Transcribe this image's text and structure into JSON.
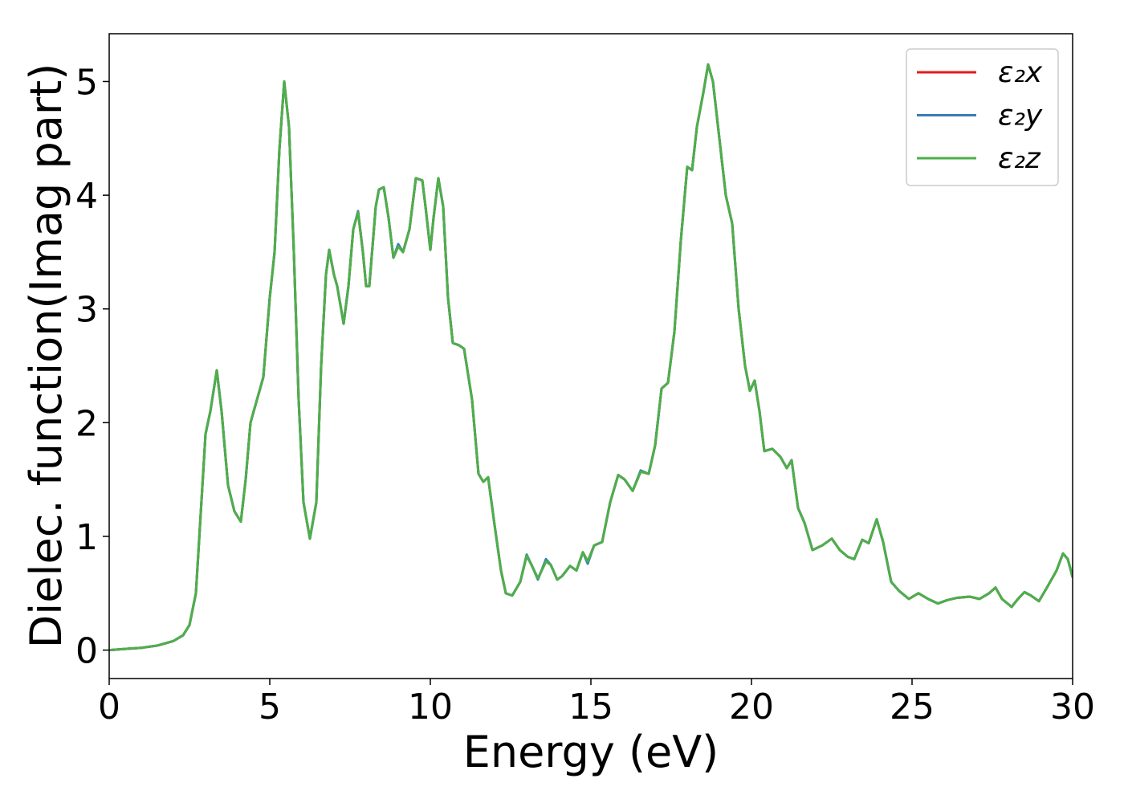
{
  "chart_data": {
    "type": "line",
    "xlabel": "Energy (eV)",
    "ylabel": "Dielec. function(Imag part)",
    "xlim": [
      0,
      30
    ],
    "ylim": [
      -0.25,
      5.42
    ],
    "xticks": [
      0,
      5,
      10,
      15,
      20,
      25,
      30
    ],
    "yticks": [
      0,
      1,
      2,
      3,
      4,
      5
    ],
    "grid": false,
    "legend": "upper right",
    "x": [
      0,
      0.5,
      1.0,
      1.5,
      2.0,
      2.3,
      2.5,
      2.7,
      2.85,
      3.0,
      3.15,
      3.35,
      3.5,
      3.7,
      3.9,
      4.1,
      4.25,
      4.4,
      4.6,
      4.8,
      5.0,
      5.15,
      5.3,
      5.45,
      5.6,
      5.75,
      5.9,
      6.05,
      6.25,
      6.45,
      6.6,
      6.75,
      6.85,
      7.0,
      7.1,
      7.3,
      7.45,
      7.6,
      7.75,
      7.9,
      8.0,
      8.1,
      8.3,
      8.4,
      8.55,
      8.7,
      8.85,
      9.0,
      9.15,
      9.35,
      9.55,
      9.75,
      9.85,
      10.0,
      10.1,
      10.25,
      10.4,
      10.55,
      10.7,
      10.9,
      11.05,
      11.3,
      11.5,
      11.65,
      11.8,
      12.0,
      12.2,
      12.35,
      12.55,
      12.8,
      13.0,
      13.15,
      13.35,
      13.6,
      13.75,
      13.95,
      14.1,
      14.35,
      14.55,
      14.75,
      14.9,
      15.1,
      15.35,
      15.6,
      15.85,
      16.05,
      16.3,
      16.55,
      16.8,
      17.0,
      17.2,
      17.4,
      17.6,
      17.8,
      18.0,
      18.15,
      18.3,
      18.5,
      18.65,
      18.8,
      19.0,
      19.2,
      19.4,
      19.6,
      19.8,
      19.95,
      20.1,
      20.25,
      20.4,
      20.65,
      20.9,
      21.1,
      21.25,
      21.45,
      21.65,
      21.9,
      22.2,
      22.5,
      22.75,
      23.0,
      23.2,
      23.45,
      23.65,
      23.9,
      24.1,
      24.35,
      24.6,
      24.9,
      25.2,
      25.5,
      25.8,
      26.1,
      26.4,
      26.8,
      27.1,
      27.4,
      27.6,
      27.8,
      28.1,
      28.3,
      28.5,
      28.7,
      28.95,
      29.2,
      29.5,
      29.7,
      29.85,
      30.0
    ],
    "series": [
      {
        "name": "ε₂x",
        "color": "#e41a1c",
        "values": [
          0,
          0.01,
          0.02,
          0.04,
          0.08,
          0.13,
          0.22,
          0.5,
          1.2,
          1.9,
          2.1,
          2.46,
          2.1,
          1.45,
          1.22,
          1.13,
          1.5,
          2.0,
          2.2,
          2.4,
          3.1,
          3.5,
          4.4,
          5.0,
          4.6,
          3.5,
          2.2,
          1.3,
          0.98,
          1.3,
          2.5,
          3.3,
          3.52,
          3.3,
          3.2,
          2.87,
          3.2,
          3.7,
          3.85,
          3.5,
          3.2,
          3.2,
          3.9,
          4.05,
          4.07,
          3.8,
          3.45,
          3.55,
          3.5,
          3.7,
          4.15,
          4.13,
          3.9,
          3.52,
          3.8,
          4.15,
          3.9,
          3.1,
          2.7,
          2.68,
          2.65,
          2.2,
          1.55,
          1.48,
          1.52,
          1.1,
          0.7,
          0.5,
          0.48,
          0.6,
          0.83,
          0.75,
          0.63,
          0.78,
          0.75,
          0.62,
          0.65,
          0.74,
          0.7,
          0.86,
          0.78,
          0.92,
          0.95,
          1.3,
          1.54,
          1.5,
          1.4,
          1.57,
          1.55,
          1.8,
          2.3,
          2.35,
          2.8,
          3.6,
          4.25,
          4.22,
          4.6,
          4.9,
          5.15,
          5.0,
          4.5,
          4.0,
          3.75,
          3.0,
          2.5,
          2.28,
          2.37,
          2.1,
          1.75,
          1.77,
          1.7,
          1.6,
          1.67,
          1.25,
          1.12,
          0.88,
          0.92,
          0.98,
          0.88,
          0.82,
          0.8,
          0.97,
          0.94,
          1.15,
          0.95,
          0.6,
          0.52,
          0.45,
          0.5,
          0.45,
          0.41,
          0.44,
          0.46,
          0.47,
          0.45,
          0.5,
          0.55,
          0.45,
          0.38,
          0.45,
          0.51,
          0.48,
          0.43,
          0.55,
          0.7,
          0.85,
          0.8,
          0.64
        ]
      },
      {
        "name": "ε₂y",
        "color": "#377eb8",
        "values": [
          0,
          0.01,
          0.02,
          0.04,
          0.08,
          0.13,
          0.22,
          0.5,
          1.2,
          1.9,
          2.1,
          2.46,
          2.1,
          1.45,
          1.22,
          1.13,
          1.5,
          2.0,
          2.2,
          2.4,
          3.1,
          3.5,
          4.4,
          5.0,
          4.6,
          3.5,
          2.2,
          1.3,
          0.98,
          1.3,
          2.5,
          3.3,
          3.52,
          3.3,
          3.2,
          2.87,
          3.2,
          3.7,
          3.86,
          3.5,
          3.2,
          3.2,
          3.9,
          4.05,
          4.07,
          3.8,
          3.45,
          3.57,
          3.5,
          3.7,
          4.15,
          4.13,
          3.9,
          3.52,
          3.8,
          4.15,
          3.9,
          3.1,
          2.7,
          2.68,
          2.65,
          2.2,
          1.55,
          1.48,
          1.52,
          1.1,
          0.7,
          0.5,
          0.48,
          0.6,
          0.84,
          0.75,
          0.62,
          0.8,
          0.75,
          0.62,
          0.65,
          0.74,
          0.7,
          0.86,
          0.76,
          0.92,
          0.95,
          1.3,
          1.54,
          1.5,
          1.4,
          1.58,
          1.55,
          1.8,
          2.3,
          2.35,
          2.8,
          3.6,
          4.25,
          4.22,
          4.6,
          4.9,
          5.15,
          5.0,
          4.5,
          4.0,
          3.75,
          3.0,
          2.5,
          2.28,
          2.37,
          2.1,
          1.75,
          1.77,
          1.7,
          1.6,
          1.67,
          1.25,
          1.12,
          0.88,
          0.92,
          0.98,
          0.88,
          0.82,
          0.8,
          0.97,
          0.94,
          1.15,
          0.95,
          0.6,
          0.52,
          0.45,
          0.5,
          0.45,
          0.41,
          0.44,
          0.46,
          0.47,
          0.45,
          0.5,
          0.55,
          0.45,
          0.38,
          0.45,
          0.51,
          0.48,
          0.43,
          0.55,
          0.7,
          0.85,
          0.8,
          0.64
        ]
      },
      {
        "name": "ε₂z",
        "color": "#4daf4a",
        "values": [
          0,
          0.01,
          0.02,
          0.04,
          0.08,
          0.13,
          0.22,
          0.5,
          1.2,
          1.9,
          2.1,
          2.46,
          2.1,
          1.45,
          1.22,
          1.13,
          1.5,
          2.0,
          2.2,
          2.4,
          3.1,
          3.5,
          4.4,
          5.0,
          4.6,
          3.5,
          2.2,
          1.3,
          0.98,
          1.3,
          2.5,
          3.3,
          3.52,
          3.3,
          3.2,
          2.87,
          3.2,
          3.7,
          3.85,
          3.5,
          3.2,
          3.2,
          3.9,
          4.05,
          4.07,
          3.8,
          3.45,
          3.55,
          3.5,
          3.7,
          4.15,
          4.13,
          3.9,
          3.52,
          3.8,
          4.15,
          3.9,
          3.1,
          2.7,
          2.68,
          2.65,
          2.2,
          1.55,
          1.48,
          1.52,
          1.1,
          0.7,
          0.5,
          0.48,
          0.6,
          0.83,
          0.75,
          0.63,
          0.78,
          0.75,
          0.62,
          0.65,
          0.74,
          0.7,
          0.86,
          0.78,
          0.92,
          0.95,
          1.3,
          1.54,
          1.5,
          1.4,
          1.57,
          1.55,
          1.8,
          2.3,
          2.35,
          2.8,
          3.6,
          4.25,
          4.22,
          4.6,
          4.9,
          5.15,
          5.0,
          4.5,
          4.0,
          3.75,
          3.0,
          2.5,
          2.28,
          2.37,
          2.1,
          1.75,
          1.77,
          1.7,
          1.6,
          1.67,
          1.25,
          1.12,
          0.88,
          0.92,
          0.98,
          0.88,
          0.82,
          0.8,
          0.97,
          0.94,
          1.15,
          0.95,
          0.6,
          0.52,
          0.45,
          0.5,
          0.45,
          0.41,
          0.44,
          0.46,
          0.47,
          0.45,
          0.5,
          0.55,
          0.45,
          0.38,
          0.45,
          0.51,
          0.48,
          0.43,
          0.55,
          0.7,
          0.85,
          0.8,
          0.64
        ]
      }
    ]
  }
}
